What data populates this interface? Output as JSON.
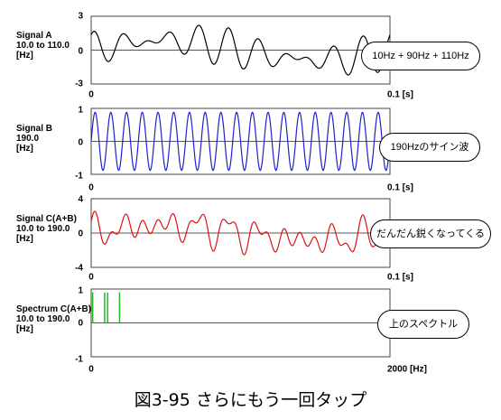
{
  "caption": "図3-95 さらにもう一回タップ",
  "chart_data": [
    {
      "type": "line",
      "label_lines": [
        "Signal A",
        "10.0 to 110.0",
        "[Hz]"
      ],
      "components_hz": [
        10,
        90,
        110
      ],
      "x_range": [
        0,
        0.1
      ],
      "ylim": [
        -3,
        3
      ],
      "y_ticks": [
        "3",
        "0",
        "-3"
      ],
      "x_tick_start": "0",
      "x_tick_end": "0.1 [s]",
      "line_color": "#000000",
      "callout": "10Hz + 90Hz + 110Hz"
    },
    {
      "type": "line",
      "label_lines": [
        "Signal B",
        "190.0",
        "[Hz]"
      ],
      "components_hz": [
        190
      ],
      "x_range": [
        0,
        0.1
      ],
      "ylim": [
        -1,
        1
      ],
      "y_ticks": [
        "1",
        "0",
        "-1"
      ],
      "x_tick_start": "0",
      "x_tick_end": "0.1 [s]",
      "line_color": "#1f1fcf",
      "callout": "190Hzのサイン波"
    },
    {
      "type": "line",
      "label_lines": [
        "Signal C(A+B)",
        "10.0 to 190.0",
        "[Hz]"
      ],
      "components_hz": [
        10,
        90,
        110,
        190
      ],
      "x_range": [
        0,
        0.1
      ],
      "ylim": [
        -4,
        4
      ],
      "y_ticks": [
        "4",
        "0",
        "-4"
      ],
      "x_tick_start": "0",
      "x_tick_end": "0.1 [s]",
      "line_color": "#e01010",
      "callout": "だんだん鋭くなってくる"
    },
    {
      "type": "bar",
      "label_lines": [
        "Spectrum C(A+B)",
        "10.0 to 190.0",
        "[Hz]"
      ],
      "x_range": [
        0,
        2000
      ],
      "ylim": [
        -1,
        1
      ],
      "y_ticks": [
        "1",
        "0",
        "-1"
      ],
      "x_tick_start": "0",
      "x_tick_end": "2000 [Hz]",
      "line_color": "#22bb22",
      "peaks": [
        {
          "freq": 10,
          "value": 1
        },
        {
          "freq": 90,
          "value": 1
        },
        {
          "freq": 110,
          "value": 1
        },
        {
          "freq": 190,
          "value": 1
        }
      ],
      "callout": "上のスペクトル"
    }
  ]
}
